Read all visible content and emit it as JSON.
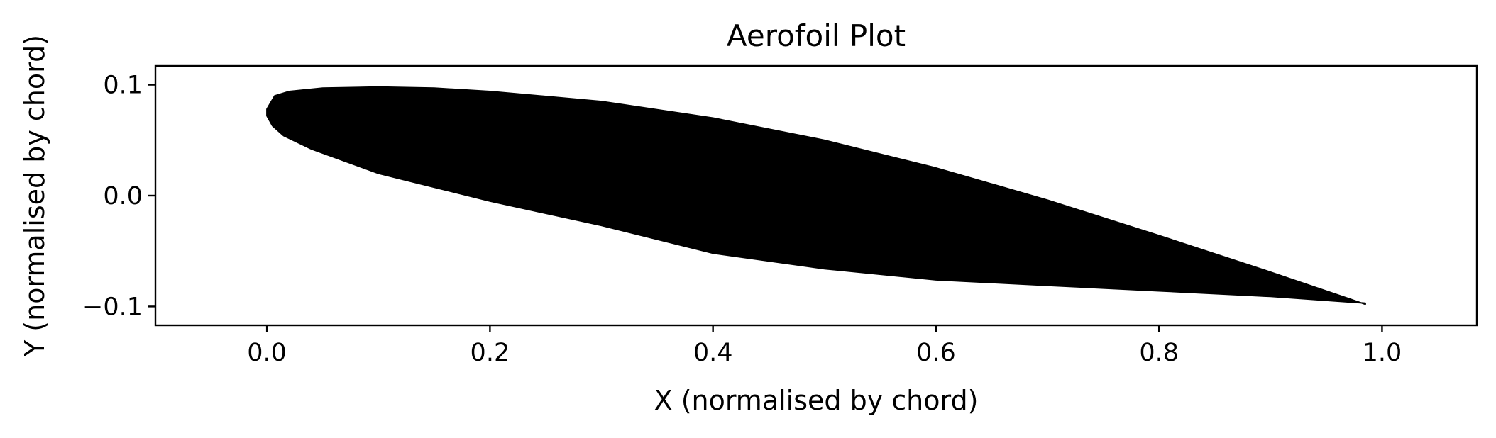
{
  "chart_data": {
    "type": "area",
    "title": "Aerofoil Plot",
    "xlabel": "X (normalised by chord)",
    "ylabel": "Y (normalised by chord)",
    "xlim": [
      -0.1,
      1.085
    ],
    "ylim": [
      -0.117,
      0.117
    ],
    "xticks": [
      0.0,
      0.2,
      0.4,
      0.6,
      0.8,
      1.0
    ],
    "xtick_labels": [
      "0.0",
      "0.2",
      "0.4",
      "0.6",
      "0.8",
      "1.0"
    ],
    "yticks": [
      0.1,
      0.0,
      -0.1
    ],
    "ytick_labels": [
      "0.1",
      "0.0",
      "−0.1"
    ],
    "grid": false,
    "fill_color": "#000000",
    "series": [
      {
        "x": [
          0.985,
          0.9,
          0.8,
          0.7,
          0.6,
          0.5,
          0.4,
          0.3,
          0.2,
          0.15,
          0.1,
          0.05,
          0.02,
          0.007,
          0.0,
          0.0,
          0.005,
          0.015,
          0.04,
          0.1,
          0.2,
          0.3,
          0.4,
          0.5,
          0.6,
          0.7,
          0.8,
          0.9,
          0.985
        ],
        "y": [
          -0.098,
          -0.069,
          -0.036,
          -0.004,
          0.025,
          0.05,
          0.07,
          0.085,
          0.094,
          0.097,
          0.098,
          0.097,
          0.094,
          0.09,
          0.078,
          0.072,
          0.063,
          0.054,
          0.042,
          0.02,
          -0.005,
          -0.027,
          -0.052,
          -0.066,
          -0.076,
          -0.081,
          -0.086,
          -0.091,
          -0.097
        ]
      }
    ]
  }
}
